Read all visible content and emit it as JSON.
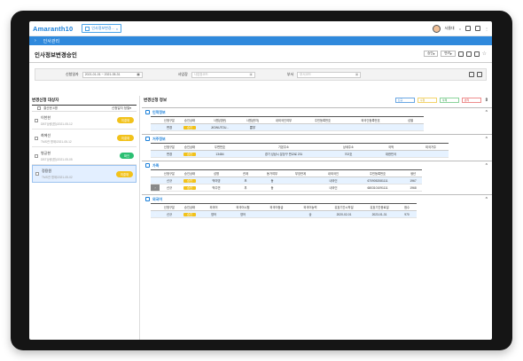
{
  "app": {
    "logo_main": "Amaranth",
    "logo_accent": "10",
    "tab_label": "인사정보변경...",
    "user": "서울대"
  },
  "crumb": {
    "title": "인사관리"
  },
  "page": {
    "title": "인사정보변경승인",
    "btn1": "승인",
    "btn2": "반려"
  },
  "filter": {
    "label_date": "신청일자",
    "date_value": "2021-01-01 ~ 2021-05-31",
    "label_biz": "사업장",
    "biz_ph": "사업장코드",
    "label_dept": "부서",
    "dept_ph": "부서코드"
  },
  "left": {
    "title": "변경신청 대상자",
    "col1": "결산현 4명",
    "col2": "신청일자 정렬",
    "items": [
      {
        "name": "이천한",
        "sub": "DBT상량(원)/2021-05-12",
        "status": "미결재",
        "color": "#f2c21b"
      },
      {
        "name": "최에선",
        "sub": "TMS관 명제/2021-05-12",
        "status": "미결재",
        "color": "#f2c21b"
      },
      {
        "name": "병궁현",
        "sub": "DBT상량(원)/2021-05-05",
        "status": "확인",
        "color": "#2bbf72"
      },
      {
        "name": "정용원",
        "sub": "TMS관 명제/2021-05-02",
        "status": "미결재",
        "color": "#f2c21b"
      }
    ]
  },
  "right": {
    "title": "변경신청 정보",
    "legend": [
      "신규",
      "수정",
      "삭제",
      "반려"
    ],
    "sections": [
      {
        "title": "인적정보",
        "headers": [
          "",
          "신청구분",
          "승인상태",
          "사원(영문)",
          "사원(한자)",
          "내외국인여부",
          "주민등록번호",
          "외국인등록번호",
          "성별"
        ],
        "rows": [
          [
            "",
            "변경",
            "승인",
            "JIGWUTOU...",
            "雲宇",
            "",
            "",
            "",
            ""
          ]
        ]
      },
      {
        "title": "거주정보",
        "headers": [
          "",
          "신청구분",
          "승인상태",
          "우편번호",
          "기본주소",
          "상세주소",
          "국적",
          "외국거주"
        ],
        "rows": [
          [
            "",
            "변경",
            "승인",
            "13484",
            "경기 성남시 분당구 판교로 231",
            "702호",
            "대한민국",
            ""
          ]
        ]
      },
      {
        "title": "가족",
        "headers": [
          "",
          "신청구분",
          "승인상태",
          "성명",
          "관계",
          "동거여부",
          "부양관계",
          "내외국인",
          "주민등록번호",
          "생년"
        ],
        "rows": [
          [
            "",
            "신규",
            "승인",
            "박미영",
            "모",
            "동",
            "",
            "내국인",
            "6709052081111",
            "1967"
          ],
          [
            "",
            "신규",
            "승인",
            "박주연",
            "부",
            "동",
            "",
            "내국인",
            "6803101091111",
            "1968"
          ]
        ]
      },
      {
        "title": "외국어",
        "headers": [
          "",
          "신청구분",
          "승인상태",
          "외국어",
          "외국어시험",
          "외국어등급",
          "외국어능력",
          "유효기간시작일",
          "유효기간종료일",
          "점수"
        ],
        "rows": [
          [
            "",
            "신규",
            "승인",
            "영어",
            "영어",
            "",
            "상",
            "2020-02-01",
            "2023-01-31",
            "970"
          ]
        ]
      }
    ]
  }
}
